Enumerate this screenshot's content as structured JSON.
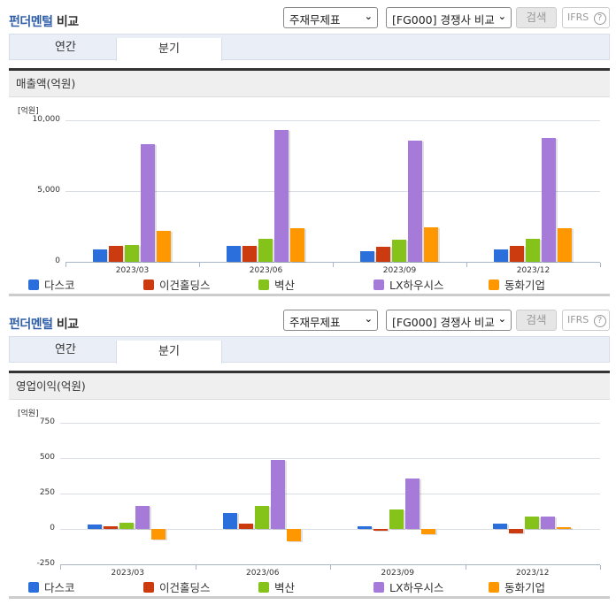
{
  "sections": [
    {
      "title_blue": "펀더멘털",
      "title_dark": "비교",
      "select1": "주재무제표",
      "select2": "[FG000] 경쟁사 비교",
      "search_label": "검색",
      "ifrs_label": "IFRS",
      "help_glyph": "?",
      "tabs": [
        {
          "label": "연간",
          "active": false
        },
        {
          "label": "분기",
          "active": true
        }
      ],
      "subheader": "매출액(억원)"
    },
    {
      "title_blue": "펀더멘털",
      "title_dark": "비교",
      "select1": "주재무제표",
      "select2": "[FG000] 경쟁사 비교",
      "search_label": "검색",
      "ifrs_label": "IFRS",
      "help_glyph": "?",
      "tabs": [
        {
          "label": "연간",
          "active": false
        },
        {
          "label": "분기",
          "active": true
        }
      ],
      "subheader": "영업이익(억원)"
    }
  ],
  "colors": {
    "다스코": "#2a6fdb",
    "이건홀딩스": "#cc3a0f",
    "벽산": "#86c31a",
    "LX하우시스": "#a57ad8",
    "동화기업": "#ff9800"
  },
  "chart_data": [
    {
      "type": "bar",
      "title": "매출액(억원)",
      "ylabel": "[억원]",
      "xlabel": "",
      "categories": [
        "2023/03",
        "2023/06",
        "2023/09",
        "2023/12"
      ],
      "yticks": [
        "10,000",
        "5,000",
        "0"
      ],
      "ylim": [
        0,
        10000
      ],
      "grid": true,
      "legend_position": "bottom",
      "series": [
        {
          "name": "다스코",
          "values": [
            900,
            1100,
            750,
            850
          ]
        },
        {
          "name": "이건홀딩스",
          "values": [
            1100,
            1100,
            1050,
            1150
          ]
        },
        {
          "name": "벽산",
          "values": [
            1200,
            1600,
            1550,
            1650
          ]
        },
        {
          "name": "LX하우시스",
          "values": [
            8300,
            9300,
            8550,
            8750
          ]
        },
        {
          "name": "동화기업",
          "values": [
            2200,
            2400,
            2450,
            2400
          ]
        }
      ]
    },
    {
      "type": "bar",
      "title": "영업이익(억원)",
      "ylabel": "[억원]",
      "xlabel": "",
      "categories": [
        "2023/03",
        "2023/06",
        "2023/09",
        "2023/12"
      ],
      "yticks": [
        "750",
        "500",
        "250",
        "0",
        "-250"
      ],
      "ylim": [
        -250,
        750
      ],
      "grid": true,
      "legend_position": "bottom",
      "series": [
        {
          "name": "다스코",
          "values": [
            30,
            115,
            20,
            35
          ]
        },
        {
          "name": "이건홀딩스",
          "values": [
            20,
            40,
            -15,
            -30
          ]
        },
        {
          "name": "벽산",
          "values": [
            45,
            165,
            140,
            85
          ]
        },
        {
          "name": "LX하우시스",
          "values": [
            160,
            490,
            355,
            85
          ]
        },
        {
          "name": "동화기업",
          "values": [
            -75,
            -90,
            -35,
            10
          ]
        }
      ]
    }
  ]
}
